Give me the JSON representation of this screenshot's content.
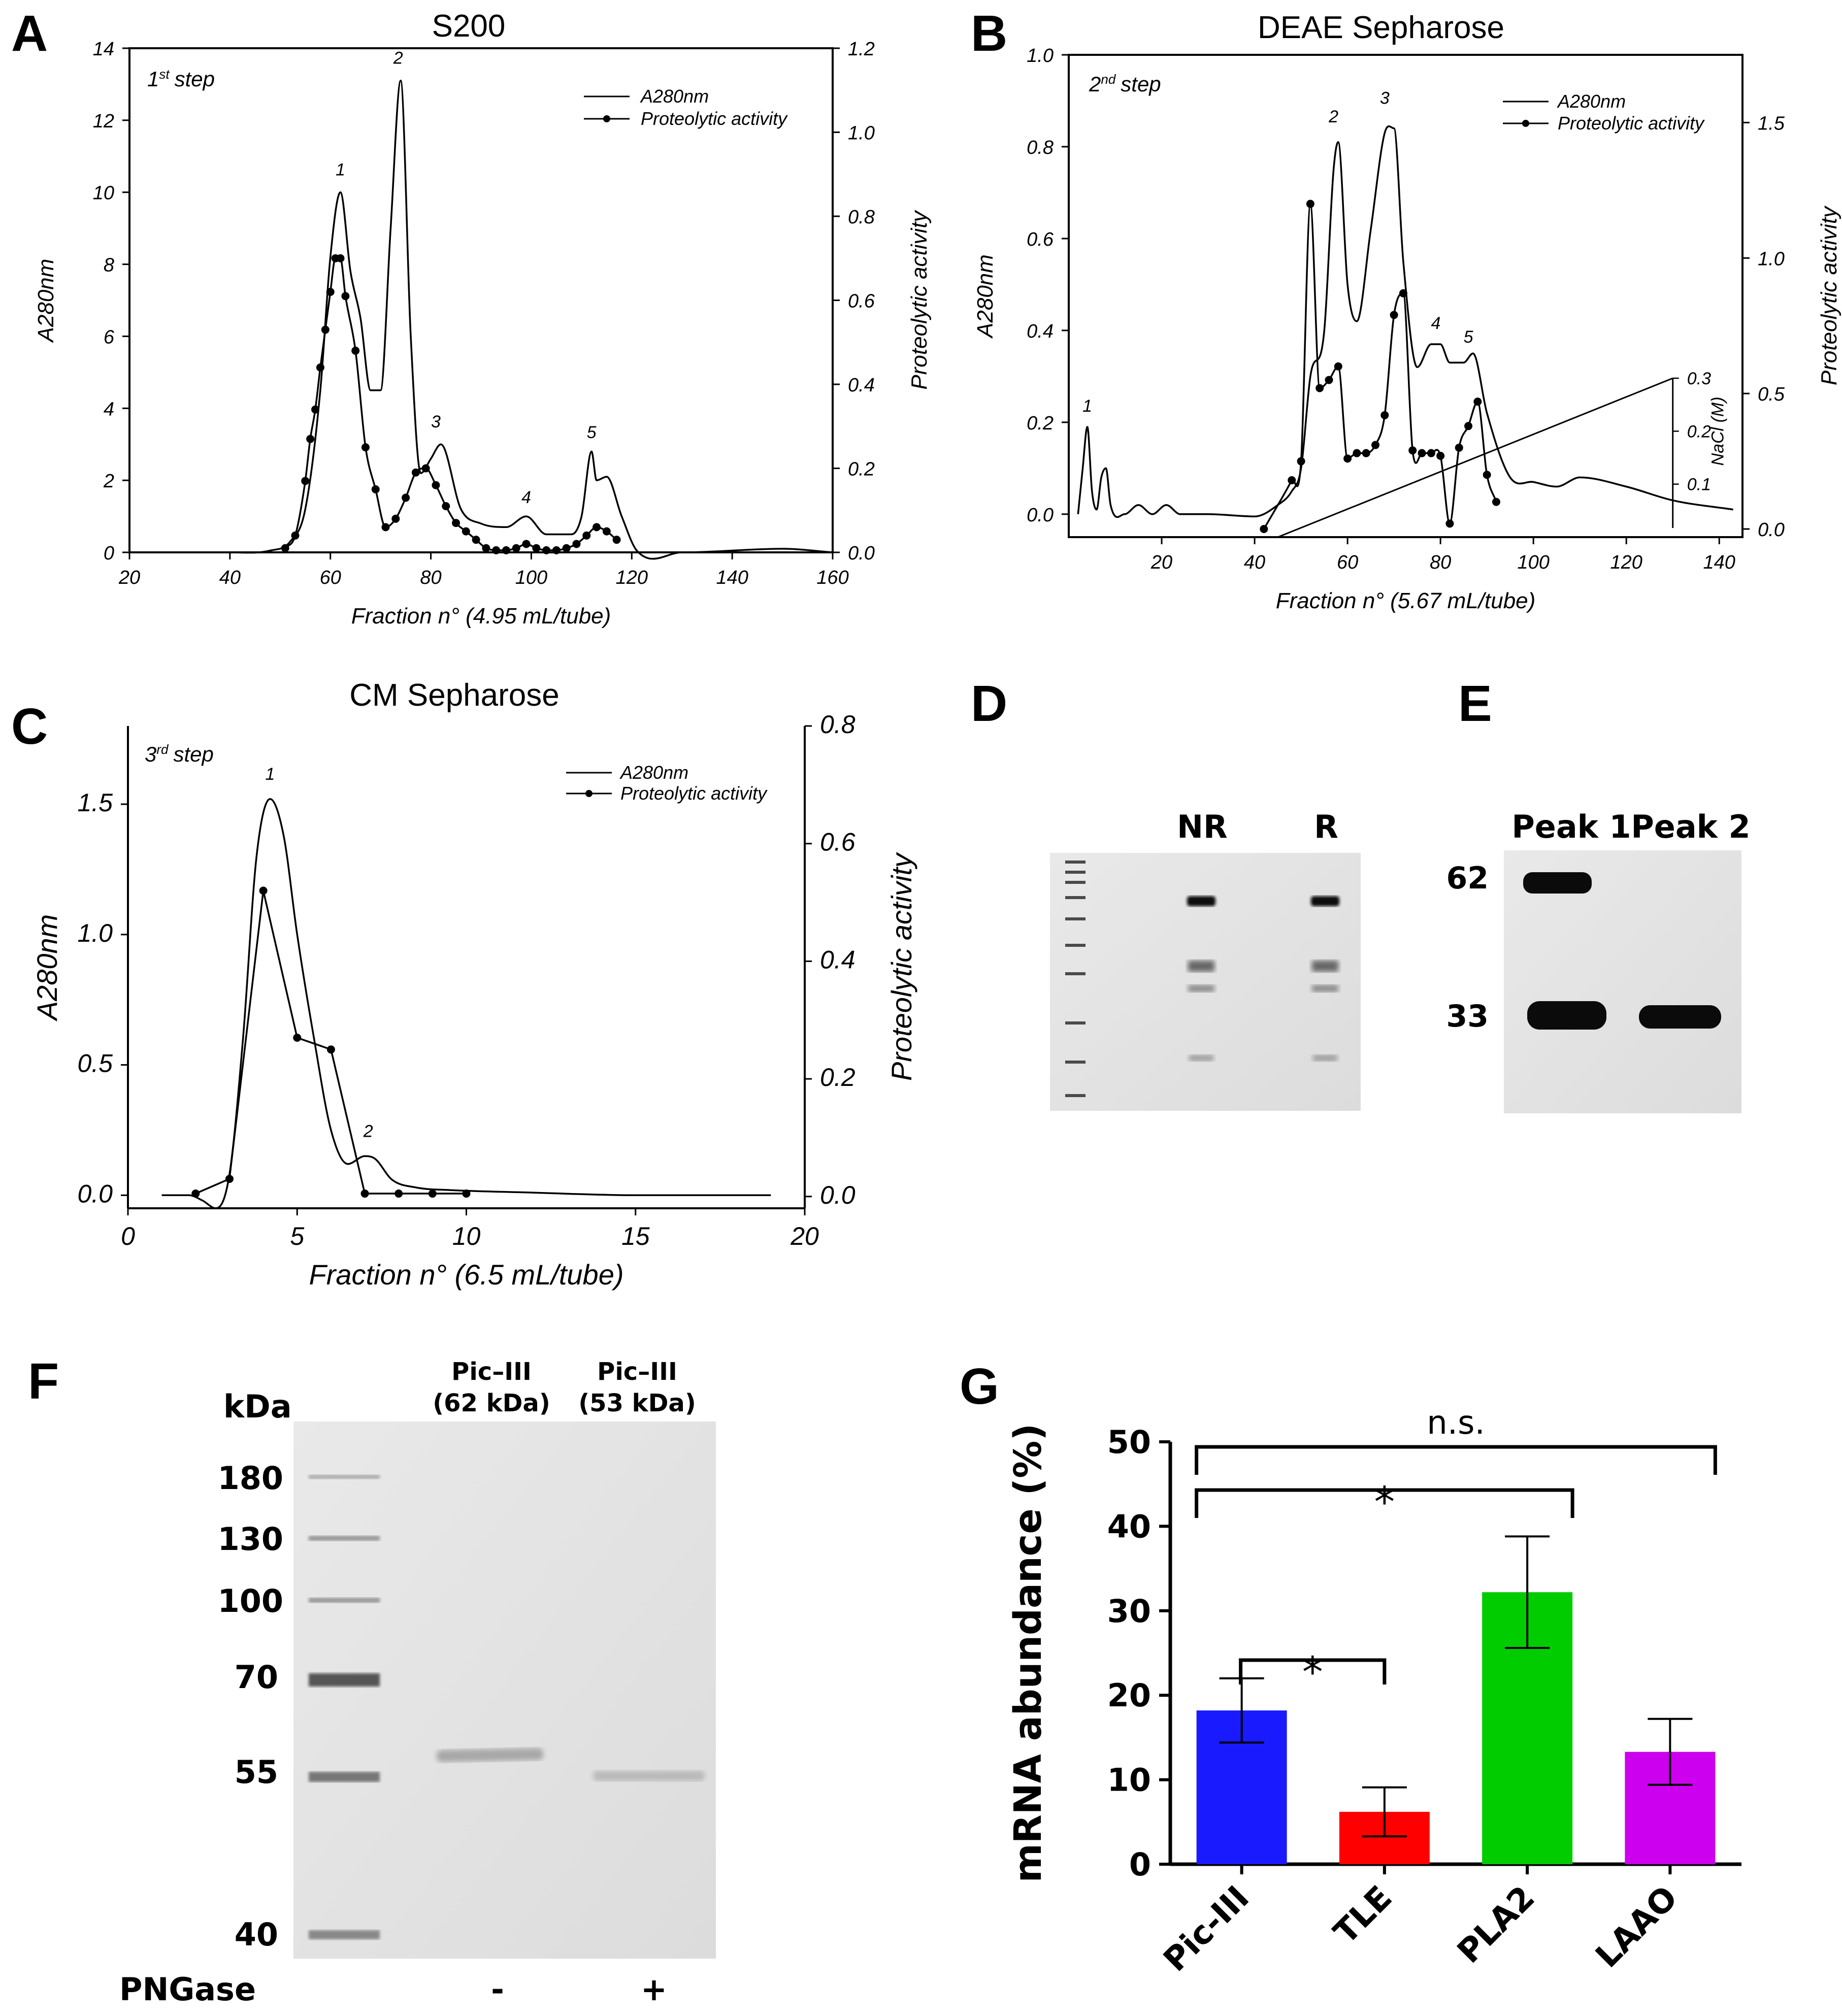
{
  "panel_labels": {
    "A": "A",
    "B": "B",
    "C": "C",
    "D": "D",
    "E": "E",
    "F": "F",
    "G": "G"
  },
  "legend": {
    "a280": "A280nm",
    "activity": "Proteolytic activity"
  },
  "chart_data": [
    {
      "panel": "A",
      "type": "line",
      "title": "S200",
      "step_label": {
        "num": "1",
        "sup": "st",
        "word": "step"
      },
      "xlabel": "Fraction n° (4.95 mL/tube)",
      "ylabel": "A280nm",
      "y2label": "Proteolytic activity",
      "xlim": [
        20,
        160
      ],
      "ylim": [
        0,
        14
      ],
      "y2lim": [
        0,
        1.2
      ],
      "xticks": [
        "20",
        "40",
        "60",
        "80",
        "100",
        "120",
        "140",
        "160"
      ],
      "yticks": [
        "0",
        "2",
        "4",
        "6",
        "8",
        "10",
        "12",
        "14"
      ],
      "y2ticks": [
        "0.0",
        "0.2",
        "0.4",
        "0.6",
        "0.8",
        "1.0",
        "1.2"
      ],
      "peaks": [
        {
          "x": 62,
          "y": 10.3,
          "label": "1"
        },
        {
          "x": 73.5,
          "y": 13.4,
          "label": "2"
        },
        {
          "x": 81,
          "y": 3.3,
          "label": "3"
        },
        {
          "x": 99,
          "y": 1.2,
          "label": "4"
        },
        {
          "x": 112,
          "y": 3.0,
          "label": "5"
        }
      ],
      "series": [
        {
          "name": "A280nm",
          "x": [
            20,
            40,
            48,
            52,
            55,
            58,
            60,
            62,
            64,
            66,
            68,
            70,
            72,
            74,
            76,
            78,
            80,
            82,
            86,
            90,
            95,
            99,
            103,
            108,
            110,
            112,
            113,
            115,
            118,
            121,
            130,
            150,
            160
          ],
          "y": [
            0,
            0,
            0.05,
            0.3,
            1.2,
            4.5,
            8.2,
            10,
            7.8,
            6.5,
            4.5,
            4.5,
            9.0,
            13.1,
            6.0,
            2.2,
            2.6,
            3.0,
            1.2,
            0.8,
            0.7,
            1.0,
            0.5,
            0.5,
            1.0,
            2.8,
            2.0,
            2.1,
            1.0,
            0.05,
            0,
            0.1,
            0
          ]
        },
        {
          "name": "Proteolytic activity",
          "x": [
            51,
            53,
            55,
            56,
            57,
            58,
            59,
            60,
            61,
            62,
            63,
            65,
            67,
            69,
            71,
            73,
            75,
            77,
            79,
            81,
            83,
            85,
            87,
            89,
            91,
            93,
            95,
            97,
            99,
            101,
            103,
            105,
            107,
            109,
            111,
            113,
            115,
            117
          ],
          "y": [
            0.01,
            0.04,
            0.17,
            0.27,
            0.34,
            0.44,
            0.53,
            0.62,
            0.7,
            0.7,
            0.61,
            0.48,
            0.25,
            0.15,
            0.06,
            0.08,
            0.13,
            0.19,
            0.2,
            0.16,
            0.11,
            0.07,
            0.05,
            0.03,
            0.01,
            0.005,
            0.005,
            0.01,
            0.02,
            0.01,
            0.005,
            0.005,
            0.01,
            0.02,
            0.04,
            0.06,
            0.05,
            0.03
          ]
        }
      ]
    },
    {
      "panel": "B",
      "type": "line",
      "title": "DEAE Sepharose",
      "step_label": {
        "num": "2",
        "sup": "nd",
        "word": "step"
      },
      "xlabel": "Fraction n° (5.67 mL/tube)",
      "ylabel": "A280nm",
      "y2label": "Proteolytic activity",
      "y3label": "NaCl (M)",
      "xlim": [
        0,
        145
      ],
      "ylim": [
        -0.05,
        1.0
      ],
      "y2lim": [
        -0.03,
        1.75
      ],
      "y3lim": [
        0,
        0.3
      ],
      "xticks": [
        "20",
        "40",
        "60",
        "80",
        "100",
        "120",
        "140"
      ],
      "yticks": [
        "0.0",
        "0.2",
        "0.4",
        "0.6",
        "0.8",
        "1.0"
      ],
      "y2ticks": [
        "0.0",
        "0.5",
        "1.0",
        "1.5"
      ],
      "y3ticks": [
        "0.1",
        "0.2",
        "0.3"
      ],
      "peaks": [
        {
          "x": 4,
          "y": 0.21,
          "label": "1"
        },
        {
          "x": 57,
          "y": 0.84,
          "label": "2"
        },
        {
          "x": 68,
          "y": 0.88,
          "label": "3"
        },
        {
          "x": 79,
          "y": 0.39,
          "label": "4"
        },
        {
          "x": 86,
          "y": 0.36,
          "label": "5"
        }
      ],
      "series": [
        {
          "name": "A280nm",
          "x": [
            2,
            3,
            4,
            5,
            6,
            7,
            8,
            9,
            12,
            15,
            18,
            21,
            24,
            30,
            40,
            45,
            48,
            50,
            52,
            55,
            57,
            58,
            60,
            62,
            65,
            68,
            70,
            72,
            75,
            78,
            80,
            82,
            85,
            87,
            90,
            95,
            100,
            105,
            110,
            120,
            130,
            143
          ],
          "y": [
            0.0,
            0.1,
            0.19,
            0.05,
            0.01,
            0.08,
            0.1,
            0.02,
            0.0,
            0.02,
            0.0,
            0.02,
            0.0,
            0.0,
            -0.005,
            0.02,
            0.05,
            0.1,
            0.3,
            0.4,
            0.75,
            0.81,
            0.5,
            0.42,
            0.62,
            0.83,
            0.84,
            0.55,
            0.32,
            0.37,
            0.37,
            0.33,
            0.33,
            0.35,
            0.22,
            0.08,
            0.07,
            0.06,
            0.08,
            0.06,
            0.03,
            0.01
          ]
        },
        {
          "name": "Proteolytic activity",
          "x": [
            42,
            48,
            50,
            52,
            54,
            56,
            58,
            60,
            62,
            64,
            66,
            68,
            70,
            72,
            74,
            76,
            78,
            80,
            82,
            84,
            86,
            88,
            90,
            92
          ],
          "y": [
            0.0,
            0.18,
            0.25,
            1.2,
            0.52,
            0.55,
            0.6,
            0.26,
            0.28,
            0.28,
            0.31,
            0.42,
            0.79,
            0.87,
            0.29,
            0.28,
            0.28,
            0.27,
            0.02,
            0.3,
            0.38,
            0.47,
            0.2,
            0.1
          ]
        },
        {
          "name": "NaCl (M)",
          "x": [
            45,
            130
          ],
          "y": [
            0.0,
            0.3
          ]
        }
      ]
    },
    {
      "panel": "C",
      "type": "line",
      "title": "CM Sepharose",
      "step_label": {
        "num": "3",
        "sup": "rd",
        "word": "step"
      },
      "xlabel": "Fraction n° (6.5 mL/tube)",
      "ylabel": "A280nm",
      "y2label": "Proteolytic activity",
      "xlim": [
        0,
        20
      ],
      "ylim": [
        -0.05,
        1.8
      ],
      "y2lim": [
        -0.02,
        0.8
      ],
      "xticks": [
        "0",
        "5",
        "10",
        "15",
        "20"
      ],
      "yticks": [
        "0.0",
        "0.5",
        "1.0",
        "1.5"
      ],
      "y2ticks": [
        "0.0",
        "0.2",
        "0.4",
        "0.6",
        "0.8"
      ],
      "peaks": [
        {
          "x": 4.2,
          "y": 1.57,
          "label": "1"
        },
        {
          "x": 7.1,
          "y": 0.2,
          "label": "2"
        }
      ],
      "series": [
        {
          "name": "A280nm",
          "x": [
            1,
            1.8,
            2.2,
            2.6,
            3.0,
            3.4,
            3.8,
            4.2,
            4.6,
            5.0,
            5.5,
            6.0,
            6.5,
            7.0,
            7.3,
            7.8,
            8.5,
            9.5,
            12,
            15,
            19
          ],
          "y": [
            0.0,
            0.0,
            -0.02,
            -0.05,
            0.08,
            0.6,
            1.3,
            1.52,
            1.38,
            1.0,
            0.6,
            0.25,
            0.12,
            0.15,
            0.14,
            0.06,
            0.03,
            0.02,
            0.01,
            0.0,
            0.0
          ]
        },
        {
          "name": "Proteolytic activity",
          "x": [
            2,
            3,
            4,
            5,
            6,
            7,
            8,
            9,
            10
          ],
          "y": [
            0.005,
            0.03,
            0.52,
            0.27,
            0.25,
            0.005,
            0.005,
            0.005,
            0.005
          ]
        }
      ]
    },
    {
      "panel": "G",
      "type": "bar",
      "ylabel": "mRNA abundance (%)",
      "ylim": [
        0,
        50
      ],
      "yticks": [
        "0",
        "10",
        "20",
        "30",
        "40",
        "50"
      ],
      "categories": [
        "Pic-III",
        "TLE",
        "PLA2",
        "LAAO"
      ],
      "values": [
        18.2,
        6.2,
        32.2,
        13.3
      ],
      "errors": [
        3.8,
        2.9,
        6.6,
        3.9
      ],
      "colors": [
        "#1a1aff",
        "#ff0000",
        "#00cc00",
        "#cc00ee"
      ],
      "significance": [
        {
          "from": 0,
          "to": 1,
          "label": "*"
        },
        {
          "from": 0,
          "to": 2,
          "label": "*"
        },
        {
          "from": 0,
          "to": 3,
          "label": "n.s."
        }
      ]
    }
  ],
  "gel_D": {
    "lanes": [
      "NR",
      "R"
    ]
  },
  "blot_E": {
    "lanes": [
      "Peak 1",
      "Peak 2"
    ],
    "markers": [
      "62",
      "33"
    ]
  },
  "gel_F": {
    "unit": "kDa",
    "ladder": [
      "180",
      "130",
      "100",
      "70",
      "55",
      "40"
    ],
    "lanes": [
      {
        "name": "Pic–III",
        "size": "(62 kDa)"
      },
      {
        "name": "Pic–III",
        "size": "(53 kDa)"
      }
    ],
    "treatment_label": "PNGase",
    "treatment": [
      "-",
      "+"
    ]
  }
}
